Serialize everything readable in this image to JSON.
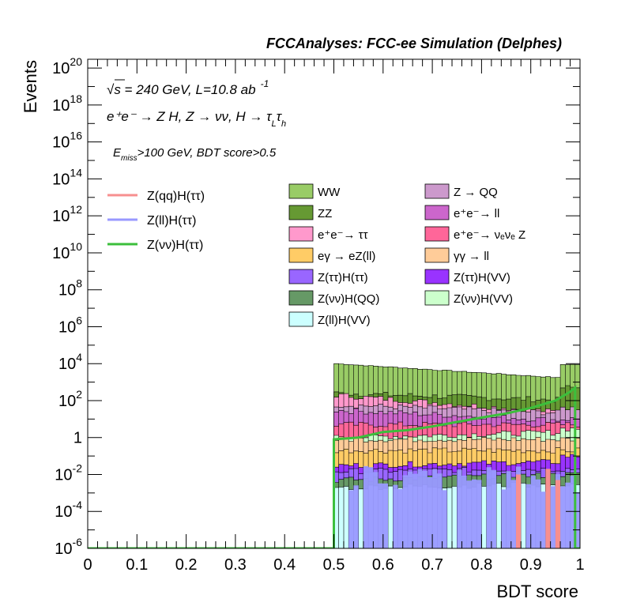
{
  "chart_data": {
    "type": "bar",
    "title": "FCCAnalyses: FCC-ee Simulation (Delphes)",
    "xlabel": "BDT score",
    "ylabel": "Events",
    "xlim": [
      0,
      1
    ],
    "ylim": [
      1e-06,
      3e+20
    ],
    "log_y": true,
    "grid": false,
    "x_ticks": [
      "0",
      "0.1",
      "0.2",
      "0.3",
      "0.4",
      "0.5",
      "0.6",
      "0.7",
      "0.8",
      "0.9",
      "1"
    ],
    "y_ticks": [
      {
        "base": "10",
        "exp": "20"
      },
      {
        "base": "10",
        "exp": "18"
      },
      {
        "base": "10",
        "exp": "16"
      },
      {
        "base": "10",
        "exp": "14"
      },
      {
        "base": "10",
        "exp": "12"
      },
      {
        "base": "10",
        "exp": "10"
      },
      {
        "base": "10",
        "exp": "8"
      },
      {
        "base": "10",
        "exp": "6"
      },
      {
        "base": "10",
        "exp": "4"
      },
      {
        "base": "10",
        "exp": "2"
      },
      {
        "base": "1",
        "exp": ""
      },
      {
        "base": "10",
        "exp": "-2"
      },
      {
        "base": "10",
        "exp": "-4"
      },
      {
        "base": "10",
        "exp": "-6"
      }
    ],
    "annotations": {
      "energy": "√s = 240 GeV, L=10.8 ab",
      "energy_sup": "-1",
      "process": "e⁺e⁻ → Z H, Z → νν, H → τ",
      "process_sub1": "L",
      "process_tau": "τ",
      "process_sub2": "h",
      "selection_e": "E",
      "selection_sub": "miss",
      "selection_rest": ">100 GeV, BDT score>0.5"
    },
    "legend_lines": [
      {
        "name": "Z(qq)H(ττ)",
        "color": "#f78f8f"
      },
      {
        "name": "Z(ll)H(ττ)",
        "color": "#9999ff"
      },
      {
        "name": "Z(νν)H(ττ)",
        "color": "#3cbf3c"
      }
    ],
    "legend_stack": [
      {
        "name": "WW",
        "color": "#99cc66"
      },
      {
        "name": "Z → QQ",
        "color": "#cc99cc"
      },
      {
        "name": "ZZ",
        "color": "#669933"
      },
      {
        "name": "e⁺e⁻→ ll",
        "color": "#cc66cc"
      },
      {
        "name": "e⁺e⁻→ ττ",
        "color": "#ff99cc"
      },
      {
        "name": "e⁺e⁻→ νₑνₑ Z",
        "color": "#ff6699"
      },
      {
        "name": "eγ → eZ(ll)",
        "color": "#ffcc66"
      },
      {
        "name": "γγ → ll",
        "color": "#ffcc99"
      },
      {
        "name": "Z(ττ)H(ττ)",
        "color": "#9966ff"
      },
      {
        "name": "Z(ττ)H(VV)",
        "color": "#9933ff"
      },
      {
        "name": "Z(νν)H(QQ)",
        "color": "#669966"
      },
      {
        "name": "Z(νν)H(VV)",
        "color": "#ccffcc"
      },
      {
        "name": "Z(ll)H(VV)",
        "color": "#ccffff"
      }
    ],
    "stack_levels": [
      {
        "name": "WW",
        "start": 10000.0,
        "end": 1500,
        "peak": 9000,
        "color": "#99cc66"
      },
      {
        "name": "ZZ",
        "start": 250,
        "end": 100,
        "peak": 500,
        "color": "#669933"
      },
      {
        "name": "e⁺e⁻→ ττ",
        "start": 200,
        "end": 20,
        "peak": 20,
        "color": "#ff99cc"
      },
      {
        "name": "Z → QQ",
        "start": 60,
        "end": 20,
        "peak": 40,
        "color": "#cc99cc"
      },
      {
        "name": "e⁺e⁻→ ll",
        "start": 30,
        "end": 8,
        "peak": 10,
        "color": "#cc66cc"
      },
      {
        "name": "e⁺e⁻→ νₑνₑ Z",
        "start": 5,
        "end": 5,
        "peak": 5,
        "color": "#ff6699"
      },
      {
        "name": "Z(νν)H(VV)",
        "start": 1,
        "end": 2,
        "peak": 3,
        "color": "#ccffcc"
      },
      {
        "name": "γγ → ll",
        "start": 0.8,
        "end": 0.8,
        "peak": 0.8,
        "color": "#ffcc99"
      },
      {
        "name": "eγ → eZ(ll)",
        "start": 0.2,
        "end": 0.2,
        "peak": 0.2,
        "color": "#ffcc66"
      },
      {
        "name": "Z(ττ)H(VV)",
        "start": 0.03,
        "end": 0.05,
        "peak": 0.1,
        "color": "#9933ff"
      },
      {
        "name": "Z(ττ)H(ττ)",
        "start": 0.015,
        "end": 0.02,
        "peak": 0.02,
        "color": "#9966ff"
      },
      {
        "name": "Z(νν)H(QQ)",
        "start": 0.005,
        "end": 0.01,
        "peak": 0.01,
        "color": "#669966"
      },
      {
        "name": "Z(ll)H(VV)",
        "start": 0.002,
        "end": 0.003,
        "peak": 0.003,
        "color": "#ccffff"
      }
    ],
    "signal_curve": {
      "name": "Z(νν)H(ττ)",
      "x": [
        0.0,
        0.5,
        0.5,
        0.55,
        0.6,
        0.65,
        0.7,
        0.75,
        0.8,
        0.85,
        0.9,
        0.95,
        0.98,
        0.99,
        0.99,
        1.0
      ],
      "y": [
        1e-06,
        1e-06,
        0.8,
        1,
        2,
        2.5,
        4,
        7,
        12,
        20,
        40,
        100,
        300,
        500,
        1e-06,
        1e-06
      ]
    },
    "colors": {
      "frame": "#000000",
      "signal": "#3cbf3c",
      "ll_signal": "#9999ff",
      "qq_signal": "#f78f8f"
    }
  }
}
